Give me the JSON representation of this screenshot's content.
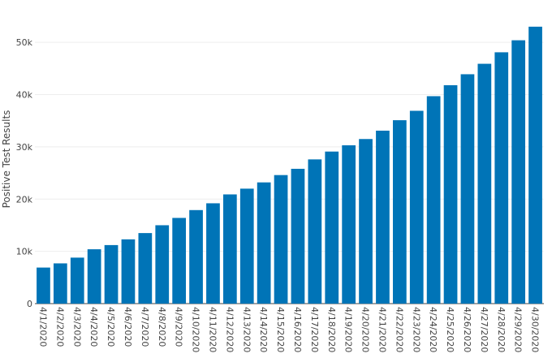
{
  "chart_data": {
    "type": "bar",
    "title": "",
    "xlabel": "",
    "ylabel": "Positive Test Results",
    "ylim": [
      0,
      55000
    ],
    "yticks": [
      0,
      10000,
      20000,
      30000,
      40000,
      50000
    ],
    "ytick_labels": [
      "0",
      "10k",
      "20k",
      "30k",
      "40k",
      "50k"
    ],
    "grid": true,
    "bar_color": "#0074b7",
    "categories": [
      "4/1/2020",
      "4/2/2020",
      "4/3/2020",
      "4/4/2020",
      "4/5/2020",
      "4/6/2020",
      "4/7/2020",
      "4/8/2020",
      "4/9/2020",
      "4/10/2020",
      "4/11/2020",
      "4/12/2020",
      "4/13/2020",
      "4/14/2020",
      "4/15/2020",
      "4/16/2020",
      "4/17/2020",
      "4/18/2020",
      "4/19/2020",
      "4/20/2020",
      "4/21/2020",
      "4/22/2020",
      "4/23/2020",
      "4/24/2020",
      "4/25/2020",
      "4/26/2020",
      "4/27/2020",
      "4/28/2020",
      "4/29/2020",
      "4/30/2020"
    ],
    "values": [
      6900,
      7700,
      8800,
      10400,
      11200,
      12300,
      13500,
      15000,
      16400,
      17900,
      19200,
      20900,
      22000,
      23200,
      24600,
      25800,
      27600,
      29100,
      30300,
      31500,
      33100,
      35100,
      36900,
      39700,
      41800,
      43900,
      45900,
      48100,
      50400,
      53000
    ]
  }
}
